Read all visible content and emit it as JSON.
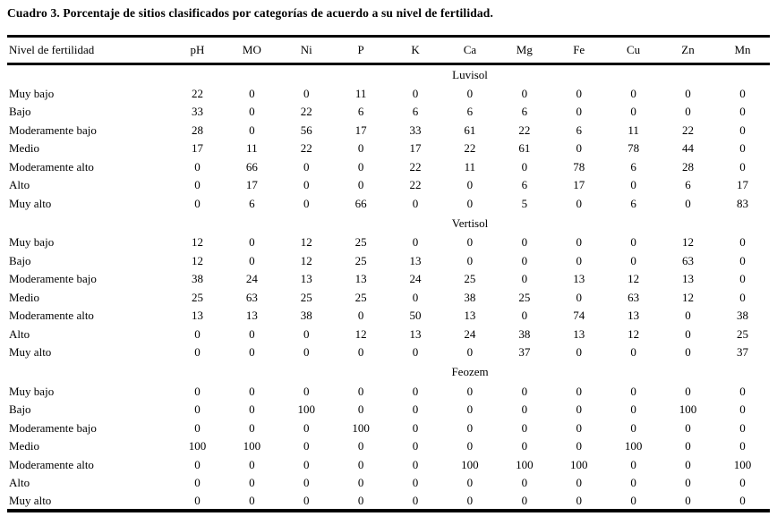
{
  "page": {
    "title": "Cuadro 3. Porcentaje de sitios clasificados por categorías de acuerdo a su nivel de fertilidad."
  },
  "table": {
    "row_header_label": "Nivel de fertilidad",
    "columns": [
      "pH",
      "MO",
      "Ni",
      "P",
      "K",
      "Ca",
      "Mg",
      "Fe",
      "Cu",
      "Zn",
      "Mn"
    ],
    "sections": [
      {
        "name": "Luvisol",
        "rows": [
          {
            "label": "Muy bajo",
            "values": [
              22,
              0,
              0,
              11,
              0,
              0,
              0,
              0,
              0,
              0,
              0
            ]
          },
          {
            "label": "Bajo",
            "values": [
              33,
              0,
              22,
              6,
              6,
              6,
              6,
              0,
              0,
              0,
              0
            ]
          },
          {
            "label": "Moderamente bajo",
            "values": [
              28,
              0,
              56,
              17,
              33,
              61,
              22,
              6,
              11,
              22,
              0
            ]
          },
          {
            "label": "Medio",
            "values": [
              17,
              11,
              22,
              0,
              17,
              22,
              61,
              0,
              78,
              44,
              0
            ]
          },
          {
            "label": "Moderamente alto",
            "values": [
              0,
              66,
              0,
              0,
              22,
              11,
              0,
              78,
              6,
              28,
              0
            ]
          },
          {
            "label": "Alto",
            "values": [
              0,
              17,
              0,
              0,
              22,
              0,
              6,
              17,
              0,
              6,
              17
            ]
          },
          {
            "label": "Muy alto",
            "values": [
              0,
              6,
              0,
              66,
              0,
              0,
              5,
              0,
              6,
              0,
              83
            ]
          }
        ]
      },
      {
        "name": "Vertisol",
        "rows": [
          {
            "label": "Muy bajo",
            "values": [
              12,
              0,
              12,
              25,
              0,
              0,
              0,
              0,
              0,
              12,
              0
            ]
          },
          {
            "label": "Bajo",
            "values": [
              12,
              0,
              12,
              25,
              13,
              0,
              0,
              0,
              0,
              63,
              0
            ]
          },
          {
            "label": "Moderamente bajo",
            "values": [
              38,
              24,
              13,
              13,
              24,
              25,
              0,
              13,
              12,
              13,
              0
            ]
          },
          {
            "label": "Medio",
            "values": [
              25,
              63,
              25,
              25,
              0,
              38,
              25,
              0,
              63,
              12,
              0
            ]
          },
          {
            "label": "Moderamente alto",
            "values": [
              13,
              13,
              38,
              0,
              50,
              13,
              0,
              74,
              13,
              0,
              38
            ]
          },
          {
            "label": "Alto",
            "values": [
              0,
              0,
              0,
              12,
              13,
              24,
              38,
              13,
              12,
              0,
              25
            ]
          },
          {
            "label": "Muy alto",
            "values": [
              0,
              0,
              0,
              0,
              0,
              0,
              37,
              0,
              0,
              0,
              37
            ]
          }
        ]
      },
      {
        "name": "Feozem",
        "rows": [
          {
            "label": "Muy bajo",
            "values": [
              0,
              0,
              0,
              0,
              0,
              0,
              0,
              0,
              0,
              0,
              0
            ]
          },
          {
            "label": "Bajo",
            "values": [
              0,
              0,
              100,
              0,
              0,
              0,
              0,
              0,
              0,
              100,
              0
            ]
          },
          {
            "label": "Moderamente bajo",
            "values": [
              0,
              0,
              0,
              100,
              0,
              0,
              0,
              0,
              0,
              0,
              0
            ]
          },
          {
            "label": "Medio",
            "values": [
              100,
              100,
              0,
              0,
              0,
              0,
              0,
              0,
              100,
              0,
              0
            ]
          },
          {
            "label": "Moderamente alto",
            "values": [
              0,
              0,
              0,
              0,
              0,
              100,
              100,
              100,
              0,
              0,
              100
            ]
          },
          {
            "label": "Alto",
            "values": [
              0,
              0,
              0,
              0,
              0,
              0,
              0,
              0,
              0,
              0,
              0
            ]
          },
          {
            "label": "Muy alto",
            "values": [
              0,
              0,
              0,
              0,
              0,
              0,
              0,
              0,
              0,
              0,
              0
            ]
          }
        ]
      }
    ]
  }
}
